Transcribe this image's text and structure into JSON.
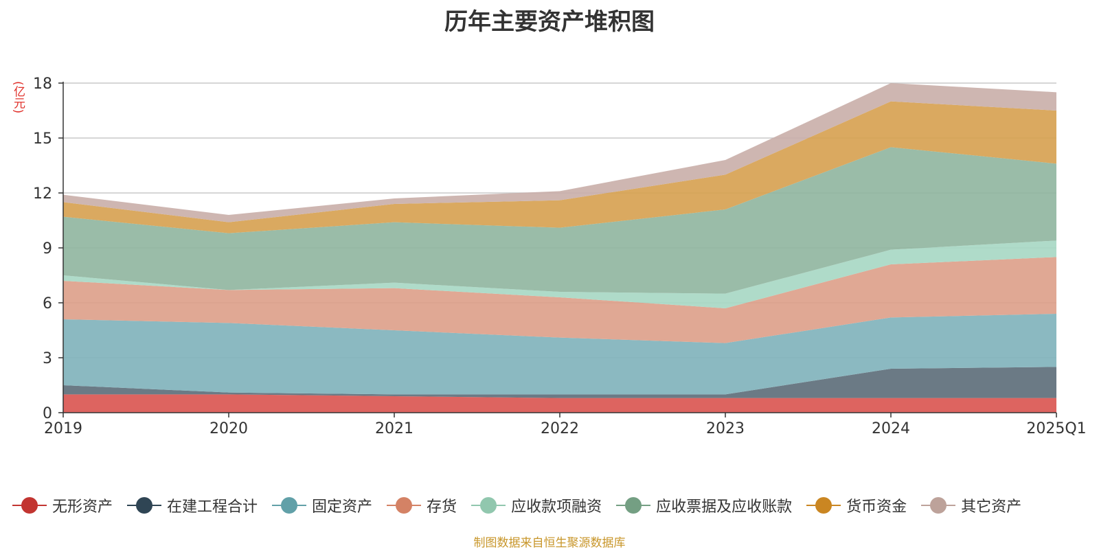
{
  "chart_data": {
    "type": "area",
    "stacked": true,
    "title": "历年主要资产堆积图",
    "ylabel": "(亿元)",
    "ylim": [
      0,
      18
    ],
    "yticks": [
      0,
      3,
      6,
      9,
      12,
      15,
      18
    ],
    "categories": [
      "2019",
      "2020",
      "2021",
      "2022",
      "2023",
      "2024",
      "2025Q1"
    ],
    "series": [
      {
        "name": "无形资产",
        "color": "#d9534f",
        "legend_color": "#c23531",
        "values": [
          1.0,
          1.0,
          0.9,
          0.8,
          0.8,
          0.8,
          0.8
        ]
      },
      {
        "name": "在建工程合计",
        "color": "#5b6c78",
        "legend_color": "#2f4554",
        "values": [
          0.5,
          0.1,
          0.1,
          0.2,
          0.2,
          1.6,
          1.7
        ]
      },
      {
        "name": "固定资产",
        "color": "#7eb1ba",
        "legend_color": "#61a0a8",
        "values": [
          3.6,
          3.8,
          3.5,
          3.1,
          2.8,
          2.8,
          2.9
        ]
      },
      {
        "name": "存货",
        "color": "#dd9e88",
        "legend_color": "#d48265",
        "values": [
          2.1,
          1.8,
          2.3,
          2.2,
          1.9,
          2.9,
          3.1
        ]
      },
      {
        "name": "应收款项融资",
        "color": "#a6d7c3",
        "legend_color": "#91c7ae",
        "values": [
          0.3,
          0.0,
          0.3,
          0.3,
          0.8,
          0.8,
          0.9
        ]
      },
      {
        "name": "应收票据及应收账款",
        "color": "#8fb59f",
        "legend_color": "#749f83",
        "values": [
          3.2,
          3.1,
          3.3,
          3.5,
          4.6,
          5.6,
          4.2
        ]
      },
      {
        "name": "货币资金",
        "color": "#d6a04f",
        "legend_color": "#ca8622",
        "values": [
          0.8,
          0.6,
          1.0,
          1.5,
          1.9,
          2.5,
          2.9
        ]
      },
      {
        "name": "其它资产",
        "color": "#c9aea8",
        "legend_color": "#bda29a",
        "values": [
          0.4,
          0.4,
          0.3,
          0.5,
          0.8,
          1.0,
          1.0
        ]
      }
    ]
  },
  "footer": {
    "source": "制图数据来自恒生聚源数据库"
  }
}
